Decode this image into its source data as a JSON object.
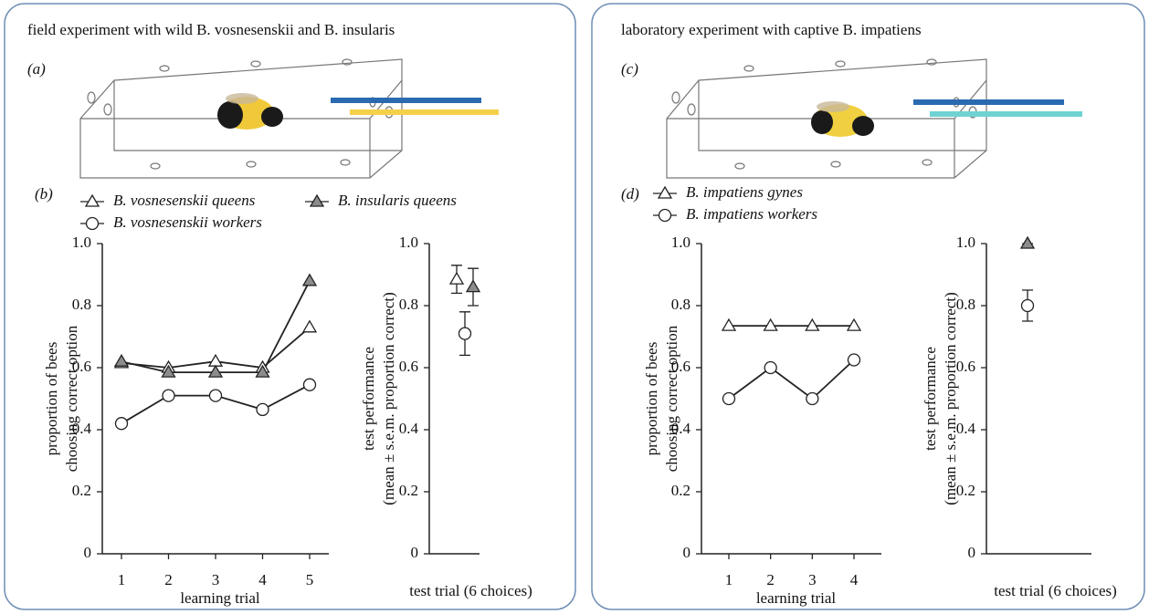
{
  "panels": [
    {
      "title": "field experiment with wild B. vosnesenskii and B. insularis",
      "illustration_label": "(a)"
    },
    {
      "title": "laboratory experiment with captive B. impatiens",
      "illustration_label": "(c)"
    }
  ],
  "chart_data": [
    {
      "type": "line",
      "panel_label": "(b)",
      "xlabel": "learning trial",
      "ylabel": [
        "proportion of bees",
        "choosing correct option"
      ],
      "categories": [
        "1",
        "2",
        "3",
        "4",
        "5"
      ],
      "series": [
        {
          "name": "B. vosnesenskii queens",
          "marker": "triangle",
          "color": "#ffffff",
          "values": [
            0.615,
            0.6,
            0.62,
            0.6,
            0.73
          ]
        },
        {
          "name": "B. insularis queens",
          "marker": "triangle",
          "color": "#8c8c8c",
          "values": [
            0.62,
            0.585,
            0.585,
            0.585,
            0.88
          ]
        },
        {
          "name": "B. vosnesenskii workers",
          "marker": "circle",
          "color": "#ffffff",
          "values": [
            0.42,
            0.51,
            0.51,
            0.465,
            0.545
          ]
        }
      ],
      "ylim": [
        0,
        1
      ],
      "yticks": [
        0,
        0.2,
        0.4,
        0.6,
        0.8,
        {
          "value": 1,
          "label": "1.0"
        }
      ]
    },
    {
      "type": "point",
      "xlabel": "test trial (6 choices)",
      "ylabel": [
        "test performance",
        "(mean ± s.e.m. proportion correct)"
      ],
      "series": [
        {
          "marker": "triangle",
          "color": "#ffffff",
          "values": [
            0.885
          ],
          "errors": [
            0.045
          ]
        },
        {
          "marker": "triangle",
          "color": "#8c8c8c",
          "values": [
            0.86
          ],
          "errors": [
            0.06
          ]
        },
        {
          "marker": "circle",
          "color": "#ffffff",
          "values": [
            0.71
          ],
          "errors": [
            0.07
          ]
        }
      ],
      "ylim": [
        0,
        1
      ],
      "yticks": [
        0,
        0.2,
        0.4,
        0.6,
        0.8,
        {
          "value": 1,
          "label": "1.0"
        }
      ]
    },
    {
      "type": "line",
      "panel_label": "(d)",
      "xlabel": "learning trial",
      "ylabel": [
        "proportion of bees",
        "choosing correct option"
      ],
      "categories": [
        "1",
        "2",
        "3",
        "4"
      ],
      "series": [
        {
          "name": "B. impatiens gynes",
          "marker": "triangle",
          "color": "#ffffff",
          "values": [
            0.735,
            0.735,
            0.735,
            0.735
          ]
        },
        {
          "name": "B. impatiens workers",
          "marker": "circle",
          "color": "#ffffff",
          "values": [
            0.5,
            0.6,
            0.5,
            0.625
          ]
        }
      ],
      "ylim": [
        0,
        1
      ],
      "yticks": [
        0,
        0.2,
        0.4,
        0.6,
        0.8,
        {
          "value": 1,
          "label": "1.0"
        }
      ]
    },
    {
      "type": "point",
      "xlabel": "test trial (6 choices)",
      "ylabel": [
        "test performance",
        "(mean ± s.e.m. proportion correct)"
      ],
      "series": [
        {
          "marker": "triangle",
          "color": "#8c8c8c",
          "values": [
            1.0
          ],
          "errors": [
            0
          ]
        },
        {
          "marker": "circle",
          "color": "#ffffff",
          "values": [
            0.8
          ],
          "errors": [
            0.05
          ]
        }
      ],
      "ylim": [
        0,
        1
      ],
      "yticks": [
        0,
        0.2,
        0.4,
        0.6,
        0.8,
        {
          "value": 1,
          "label": "1.0"
        }
      ]
    }
  ]
}
